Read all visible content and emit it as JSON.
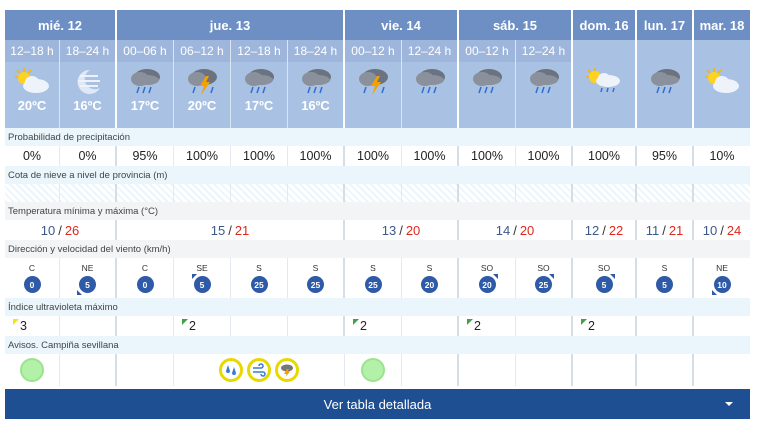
{
  "days": [
    {
      "label": "mié. 12",
      "span": 2
    },
    {
      "label": "jue. 13",
      "span": 4
    },
    {
      "label": "vie. 14",
      "span": 2
    },
    {
      "label": "sáb. 15",
      "span": 2
    },
    {
      "label": "dom. 16",
      "span": 1
    },
    {
      "label": "lun. 17",
      "span": 1
    },
    {
      "label": "mar. 18",
      "span": 1
    }
  ],
  "periods": [
    {
      "label": "12–18 h",
      "sky": "partly-cloudy-sun-icon",
      "temp": "20ºC",
      "probability": "0%",
      "wind_dir": "C",
      "wind_speed": "0",
      "wind_arrow": "",
      "uv": "3",
      "uv_color": "#f4e31c",
      "aviso": "green"
    },
    {
      "label": "18–24 h",
      "sky": "moon-haze-icon",
      "temp": "16ºC",
      "probability": "0%",
      "wind_dir": "NE",
      "wind_speed": "5",
      "wind_arrow": "bl",
      "uv": "",
      "uv_color": "",
      "aviso": ""
    },
    {
      "label": "00–06 h",
      "sky": "rain-cloud-icon",
      "temp": "17ºC",
      "probability": "95%",
      "wind_dir": "C",
      "wind_speed": "0",
      "wind_arrow": "",
      "uv": "",
      "uv_color": "",
      "aviso": ""
    },
    {
      "label": "06–12 h",
      "sky": "storm-rain-icon",
      "temp": "20ºC",
      "probability": "100%",
      "wind_dir": "SE",
      "wind_speed": "5",
      "wind_arrow": "tl",
      "uv": "2",
      "uv_color": "#43a047",
      "aviso": "rain-wind-storm"
    },
    {
      "label": "12–18 h",
      "sky": "rain-cloud-icon",
      "temp": "17ºC",
      "probability": "100%",
      "wind_dir": "S",
      "wind_speed": "25",
      "wind_arrow": "",
      "uv": "",
      "uv_color": "",
      "aviso": ""
    },
    {
      "label": "18–24 h",
      "sky": "rain-cloud-icon",
      "temp": "16ºC",
      "probability": "100%",
      "wind_dir": "S",
      "wind_speed": "25",
      "wind_arrow": "",
      "uv": "",
      "uv_color": "",
      "aviso": ""
    },
    {
      "label": "00–12 h",
      "sky": "storm-rain-icon",
      "temp": "",
      "probability": "100%",
      "wind_dir": "S",
      "wind_speed": "25",
      "wind_arrow": "",
      "uv": "2",
      "uv_color": "#43a047",
      "aviso": "green"
    },
    {
      "label": "12–24 h",
      "sky": "rain-cloud-icon",
      "temp": "",
      "probability": "100%",
      "wind_dir": "S",
      "wind_speed": "20",
      "wind_arrow": "",
      "uv": "",
      "uv_color": "",
      "aviso": ""
    },
    {
      "label": "00–12 h",
      "sky": "rain-cloud-icon",
      "temp": "",
      "probability": "100%",
      "wind_dir": "SO",
      "wind_speed": "20",
      "wind_arrow": "tr",
      "uv": "2",
      "uv_color": "#43a047",
      "aviso": ""
    },
    {
      "label": "12–24 h",
      "sky": "rain-cloud-icon",
      "temp": "",
      "probability": "100%",
      "wind_dir": "SO",
      "wind_speed": "25",
      "wind_arrow": "tr",
      "uv": "",
      "uv_color": "",
      "aviso": ""
    },
    {
      "label": "",
      "sky": "sun-cloud-drizzle-icon",
      "temp": "",
      "probability": "100%",
      "wind_dir": "SO",
      "wind_speed": "5",
      "wind_arrow": "tr",
      "uv": "2",
      "uv_color": "#43a047",
      "aviso": ""
    },
    {
      "label": "",
      "sky": "rain-cloud-icon",
      "temp": "",
      "probability": "95%",
      "wind_dir": "S",
      "wind_speed": "5",
      "wind_arrow": "",
      "uv": "",
      "uv_color": "",
      "aviso": ""
    },
    {
      "label": "",
      "sky": "partly-cloudy-sun-icon",
      "temp": "",
      "probability": "10%",
      "wind_dir": "NE",
      "wind_speed": "10",
      "wind_arrow": "bl",
      "uv": "",
      "uv_color": "",
      "aviso": ""
    }
  ],
  "temperature_ranges": [
    {
      "min": "10",
      "max": "26",
      "span": 2
    },
    {
      "min": "15",
      "max": "21",
      "span": 4
    },
    {
      "min": "13",
      "max": "20",
      "span": 2
    },
    {
      "min": "14",
      "max": "20",
      "span": 2
    },
    {
      "min": "12",
      "max": "22",
      "span": 1
    },
    {
      "min": "11",
      "max": "21",
      "span": 1
    },
    {
      "min": "10",
      "max": "24",
      "span": 1
    }
  ],
  "labels": {
    "precip": "Probabilidad de precipitación",
    "snow": "Cota de nieve a nivel de provincia (m)",
    "temp": "Temperatura mínima y máxima (°C)",
    "wind": "Dirección y velocidad del viento (km/h)",
    "uv": "Índice ultravioleta máximo",
    "avisos": "Avisos. Campiña sevillana",
    "temp_separator": "/"
  },
  "button": {
    "label": "Ver tabla detallada"
  },
  "colors": {
    "accent": "#1e4f93",
    "max_temp": "#e0281e",
    "min_temp": "#3a5a8c",
    "warning_yellow": "#e8d800",
    "no_warning": "#b3f0a8"
  }
}
